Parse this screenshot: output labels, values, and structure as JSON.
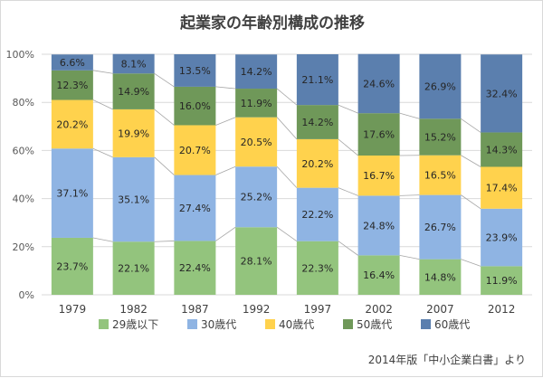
{
  "chart_data": {
    "type": "bar",
    "stacked": true,
    "percent": true,
    "title": "起業家の年齢別構成の推移",
    "categories": [
      "1979",
      "1982",
      "1987",
      "1992",
      "1997",
      "2002",
      "2007",
      "2012"
    ],
    "series": [
      {
        "name": "29歳以下",
        "color": "#93c47d",
        "values": [
          23.7,
          22.1,
          22.4,
          28.1,
          22.3,
          16.4,
          14.8,
          11.9
        ]
      },
      {
        "name": "30歳代",
        "color": "#8fb4e3",
        "values": [
          37.1,
          35.1,
          27.4,
          25.2,
          22.2,
          24.8,
          26.7,
          23.9
        ]
      },
      {
        "name": "40歳代",
        "color": "#ffd24d",
        "values": [
          20.2,
          19.9,
          20.7,
          20.5,
          20.2,
          16.7,
          16.5,
          17.4
        ]
      },
      {
        "name": "50歳代",
        "color": "#6f9859",
        "values": [
          12.3,
          14.9,
          16.0,
          11.9,
          14.2,
          17.6,
          15.2,
          14.3
        ]
      },
      {
        "name": "60歳代",
        "color": "#5b7fae",
        "values": [
          6.6,
          8.1,
          13.5,
          14.2,
          21.1,
          24.6,
          26.9,
          32.4
        ]
      }
    ],
    "yticks": [
      "0%",
      "20%",
      "40%",
      "60%",
      "80%",
      "100%"
    ],
    "ylim": [
      0,
      100
    ],
    "grid": true,
    "legend_position": "bottom",
    "source_note": "2014年版「中小企業白書」より"
  }
}
